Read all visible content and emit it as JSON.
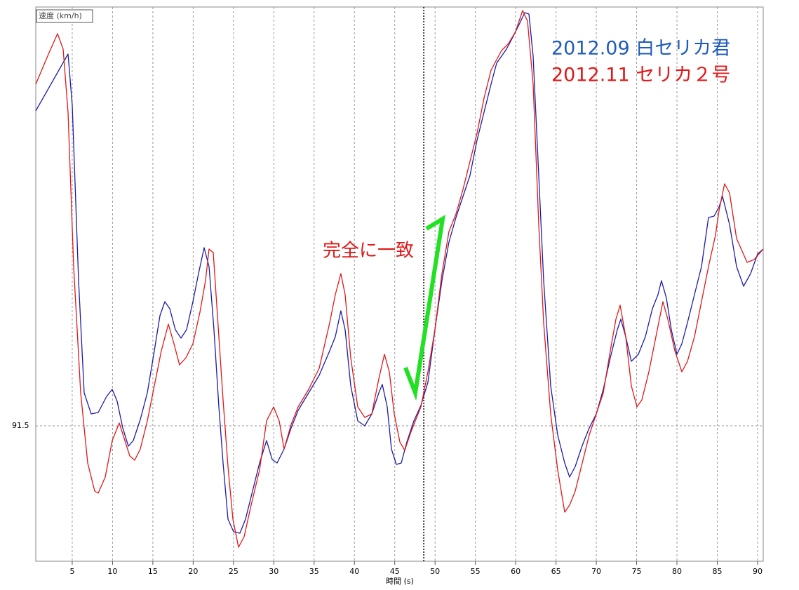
{
  "chart_data": {
    "type": "line",
    "y_label": "速度 (km/h)",
    "x_label": "時間 (s)",
    "annotation": "完全に一致",
    "xlim": [
      0.48,
      90.7
    ],
    "ylim": [
      43.25,
      240.75
    ],
    "xticks": [
      5,
      10,
      15,
      20,
      25,
      30,
      35,
      40,
      45,
      50,
      55,
      60,
      65,
      70,
      75,
      80,
      85,
      90
    ],
    "yticks": [
      91.5
    ],
    "grid": true,
    "cursor_x": 48.6,
    "legend": "top-right",
    "series": [
      {
        "name": "2012.09 白セリカ君",
        "color": "#1c1ca8",
        "legend_color": "#1f5cb8",
        "x": [
          0.48,
          4.48,
          5.0,
          5.79,
          6.48,
          7.35,
          8.22,
          9.27,
          9.96,
          10.57,
          11.27,
          11.96,
          12.57,
          13.44,
          14.31,
          15.18,
          15.88,
          16.49,
          17.1,
          17.79,
          18.49,
          19.18,
          19.97,
          20.66,
          21.36,
          21.97,
          22.58,
          23.19,
          23.71,
          24.32,
          25.01,
          25.8,
          26.49,
          27.36,
          28.23,
          29.1,
          29.8,
          30.41,
          31.28,
          32.15,
          33.02,
          34.32,
          35.63,
          36.93,
          37.63,
          38.32,
          38.85,
          39.54,
          40.41,
          41.28,
          42.15,
          43.02,
          43.46,
          44.07,
          44.59,
          45.2,
          45.81,
          46.5,
          47.37,
          48.24,
          49.11,
          49.98,
          50.85,
          51.72,
          52.59,
          53.46,
          54.33,
          55.2,
          56.07,
          56.94,
          57.64,
          58.25,
          58.86,
          59.55,
          60.42,
          61.12,
          61.64,
          62.16,
          62.86,
          63.47,
          64.34,
          65.21,
          66.08,
          66.69,
          67.38,
          68.25,
          69.12,
          69.99,
          70.86,
          71.73,
          72.6,
          73.04,
          73.65,
          74.34,
          75.21,
          76.08,
          76.95,
          77.65,
          78.08,
          78.69,
          79.3,
          80.0,
          80.61,
          81.3,
          82.17,
          83.04,
          83.91,
          84.61,
          85.22,
          85.65,
          86.52,
          87.39,
          88.26,
          89.13,
          90.0,
          90.7
        ],
        "values": [
          203.75,
          224,
          205.75,
          143.25,
          103.25,
          95.75,
          96.25,
          102,
          104.5,
          100.25,
          90.75,
          84.25,
          86.25,
          93.75,
          103.25,
          118.25,
          130.75,
          135.75,
          133.25,
          125.75,
          122.75,
          125.75,
          135.75,
          145.75,
          155,
          148.25,
          125.75,
          98.25,
          78.25,
          58.25,
          53.75,
          53.25,
          58.25,
          68.25,
          78.25,
          86.25,
          79.5,
          78.25,
          83.25,
          90.75,
          97,
          103.25,
          109.5,
          118.25,
          123.25,
          132.5,
          125.75,
          105.75,
          93.25,
          91.5,
          95.75,
          103.25,
          106.25,
          98.25,
          83.25,
          77.75,
          78.25,
          85.75,
          93.25,
          98.75,
          107,
          125.75,
          143.25,
          157,
          165.75,
          173.25,
          180.75,
          193.25,
          203.25,
          213.25,
          220.75,
          223.25,
          225.75,
          229.5,
          234.5,
          238.75,
          238.25,
          223.25,
          180.75,
          143.25,
          105.75,
          88.25,
          78.25,
          73.25,
          77,
          84.5,
          90.75,
          95.75,
          104.5,
          115.75,
          125.75,
          129.5,
          123.25,
          114.5,
          117,
          123.25,
          133.25,
          138.25,
          143.25,
          137,
          125.75,
          117,
          120.75,
          128.25,
          138.25,
          148.25,
          165.75,
          166.25,
          169.5,
          173.25,
          163.25,
          148.25,
          141.25,
          145.75,
          152.75,
          154.5
        ]
      },
      {
        "name": "2012.11 セリカ２号",
        "color": "#e01818",
        "legend_color": "#e01818",
        "x": [
          0.48,
          2.13,
          3.18,
          3.87,
          4.48,
          5.18,
          6.05,
          6.92,
          7.79,
          8.22,
          9.09,
          9.96,
          10.83,
          11.53,
          12.14,
          12.75,
          13.44,
          14.31,
          15.18,
          16.05,
          16.92,
          17.62,
          18.31,
          19.1,
          19.97,
          20.84,
          21.53,
          21.97,
          22.49,
          23.01,
          23.71,
          24.32,
          24.93,
          25.62,
          26.32,
          27.19,
          28.23,
          29.1,
          29.97,
          30.67,
          31.28,
          32.15,
          33.02,
          34.32,
          35.63,
          36.93,
          37.63,
          38.32,
          38.85,
          39.54,
          40.41,
          41.28,
          42.15,
          43.02,
          43.72,
          44.33,
          44.94,
          45.63,
          46.24,
          46.94,
          47.55,
          48.24,
          49.11,
          49.98,
          50.85,
          51.72,
          52.59,
          53.46,
          54.33,
          55.2,
          56.07,
          56.94,
          57.64,
          58.25,
          59.12,
          59.99,
          60.86,
          61.47,
          62.16,
          62.86,
          63.47,
          64.34,
          65.21,
          66.08,
          66.69,
          67.38,
          68.25,
          69.12,
          69.99,
          70.86,
          71.73,
          72.43,
          72.95,
          73.65,
          74.34,
          75.04,
          75.65,
          76.52,
          77.39,
          78.26,
          78.87,
          79.74,
          80.61,
          81.3,
          82.17,
          83.04,
          83.91,
          84.78,
          85.22,
          85.91,
          86.52,
          87.39,
          88.7,
          89.57,
          90.7
        ],
        "values": [
          213.25,
          224.5,
          231.25,
          225.75,
          203.25,
          148.25,
          103.25,
          78.25,
          68.25,
          67.5,
          73.25,
          86.25,
          92.5,
          86.25,
          80.75,
          79.25,
          83.25,
          93.25,
          105.75,
          118.25,
          127.75,
          120.75,
          113.25,
          115.75,
          120.75,
          132,
          143.25,
          154.5,
          153.25,
          130.75,
          100.75,
          77,
          58.25,
          48.25,
          52,
          63.25,
          75.75,
          93.25,
          98.25,
          93.25,
          83.25,
          92,
          98.25,
          104.5,
          112,
          128.25,
          138.25,
          145.75,
          138.25,
          115.75,
          98.25,
          94.5,
          95.75,
          108.25,
          117,
          110.75,
          95.75,
          85.75,
          82.75,
          88.75,
          93.25,
          98.25,
          110.75,
          125.75,
          145.75,
          160.75,
          167,
          175.75,
          185.75,
          195.75,
          208.25,
          218.25,
          222,
          225.25,
          227.75,
          232,
          239.5,
          235.75,
          213.25,
          163.25,
          128.25,
          95.75,
          75.75,
          60.75,
          63.25,
          68.25,
          78.25,
          88.25,
          95.75,
          103.25,
          118.25,
          129.5,
          134.5,
          123.25,
          105.75,
          98.25,
          100.75,
          110.75,
          123.25,
          135.75,
          129.5,
          118.25,
          110.75,
          114.5,
          123.25,
          135.75,
          148.25,
          159.5,
          168.25,
          177.75,
          174.5,
          158.25,
          149.75,
          150.75,
          154.5
        ]
      }
    ]
  }
}
